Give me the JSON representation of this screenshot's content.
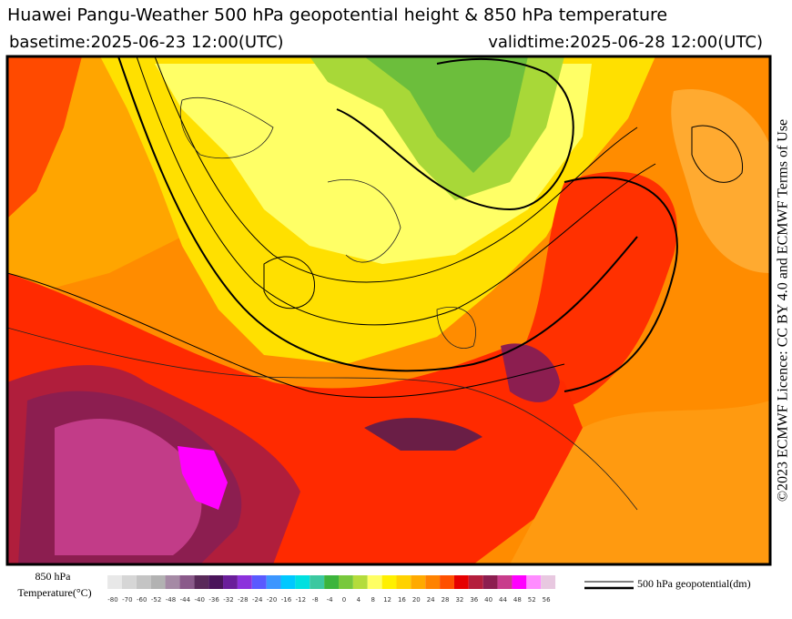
{
  "header": {
    "title": "Huawei Pangu-Weather 500 hPa geopotential height & 850 hPa temperature",
    "basetime": "basetime:2025-06-23 12:00(UTC)",
    "validtime": "validtime:2025-06-28 12:00(UTC)"
  },
  "credit": "©2023 ECMWF Licence: CC BY 4.0 and ECMWF Terms of Use",
  "colorbar": {
    "title_line1": "850 hPa",
    "title_line2": "Temperature(°C)",
    "ticks": [
      -80,
      -70,
      -60,
      -52,
      -48,
      -44,
      -40,
      -36,
      -32,
      -28,
      -24,
      -20,
      -16,
      -12,
      -8,
      -4,
      0,
      4,
      8,
      12,
      16,
      20,
      24,
      28,
      32,
      36,
      40,
      44,
      48,
      52,
      56
    ],
    "colors": [
      "#e8e8e8",
      "#d6d6d6",
      "#c4c4c4",
      "#b2b2b2",
      "#a58aa5",
      "#8a5a8a",
      "#5a2a5a",
      "#4a145a",
      "#6a1e9a",
      "#8c32dc",
      "#5a5aff",
      "#3c96ff",
      "#00c8ff",
      "#00e0e0",
      "#3cc8a0",
      "#3cb43c",
      "#78c83c",
      "#b4dc3c",
      "#ffff64",
      "#fff000",
      "#ffd200",
      "#ffaa00",
      "#ff8200",
      "#ff5000",
      "#e60000",
      "#b41e3c",
      "#8c1e50",
      "#c83c8c",
      "#ff00ff",
      "#ff8cff",
      "#e8c8e0"
    ]
  },
  "contour_legend": "500 hPa geopotential(dm)"
}
